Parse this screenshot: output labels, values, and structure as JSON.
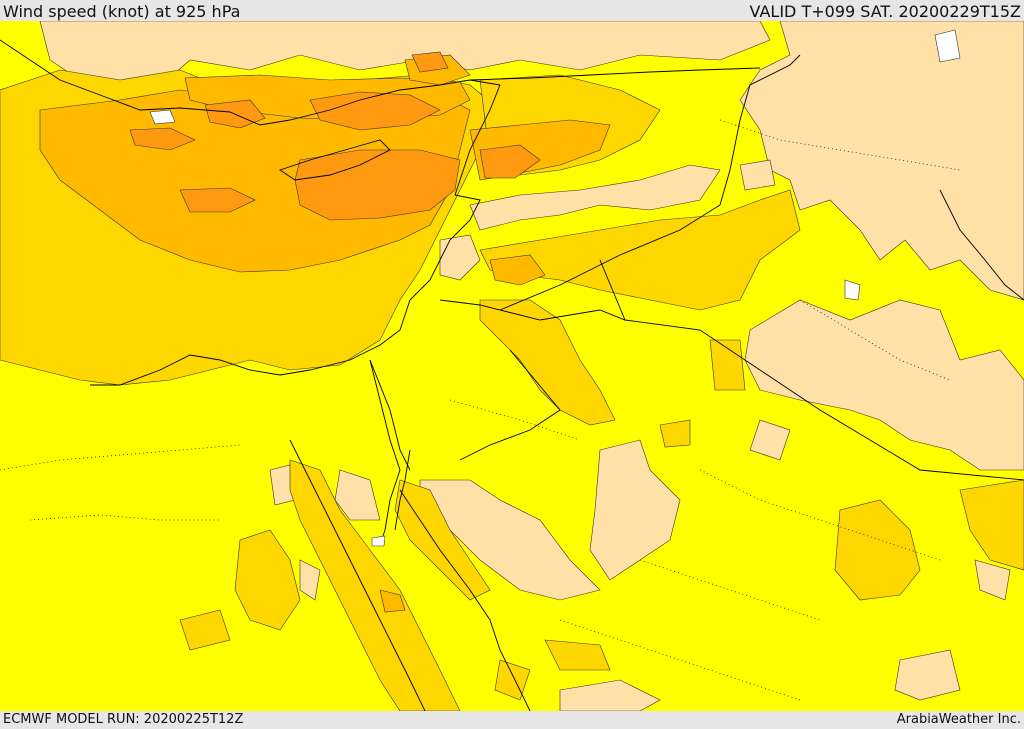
{
  "header": {
    "title": "Wind speed (knot) at 925 hPa",
    "valid": "VALID T+099 SAT. 20200229T15Z"
  },
  "footer": {
    "model_run": "ECMWF MODEL RUN: 20200225T12Z",
    "credit": "ArabiaWeather Inc."
  },
  "colors": {
    "calm": "#ffe0a6",
    "light": "#ffff00",
    "moderate": "#ffd700",
    "fresh": "#ffba00",
    "strong": "#ff9a10",
    "lines": "#000000"
  }
}
